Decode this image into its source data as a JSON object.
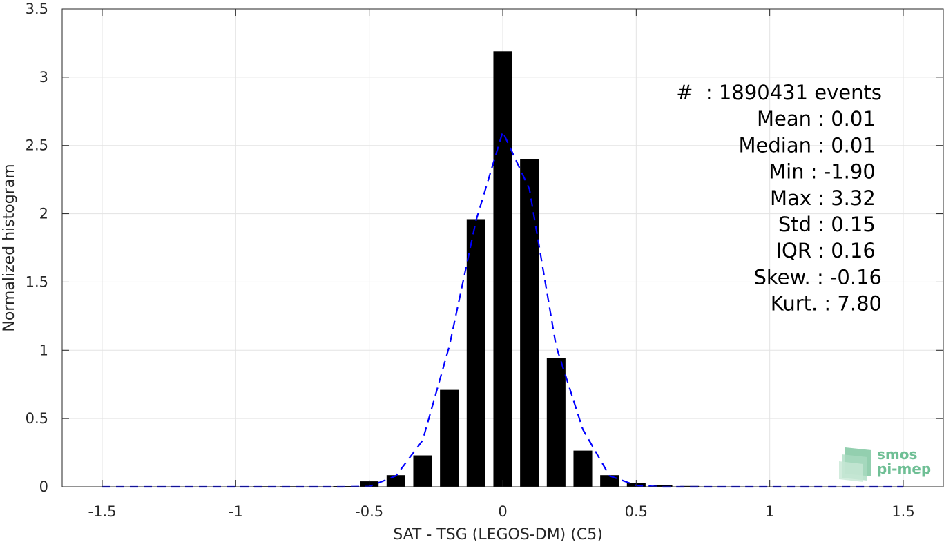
{
  "chart_data": {
    "type": "bar",
    "xlabel": "SAT - TSG (LEGOS-DM) (C5)",
    "ylabel": "Normalized histogram",
    "xlim": [
      -1.65,
      1.65
    ],
    "ylim": [
      0,
      3.5
    ],
    "xticks": [
      -1.5,
      -1,
      -0.5,
      0,
      0.5,
      1,
      1.5
    ],
    "xtick_labels": [
      "-1.5",
      "-1",
      "-0.5",
      "0",
      "0.5",
      "1",
      "1.5"
    ],
    "yticks": [
      0,
      0.5,
      1,
      1.5,
      2,
      2.5,
      3,
      3.5
    ],
    "ytick_labels": [
      "0",
      "0.5",
      "1",
      "1.5",
      "2",
      "2.5",
      "3",
      "3.5"
    ],
    "grid": true,
    "bar_color": "#000000",
    "bars": {
      "x": [
        -1.5,
        -1.4,
        -1.3,
        -1.2,
        -1.1,
        -1.0,
        -0.9,
        -0.8,
        -0.7,
        -0.6,
        -0.5,
        -0.4,
        -0.3,
        -0.2,
        -0.1,
        0.0,
        0.1,
        0.2,
        0.3,
        0.4,
        0.5,
        0.6,
        0.7,
        0.8,
        0.9,
        1.0,
        1.1,
        1.2,
        1.3,
        1.4,
        1.5
      ],
      "values": [
        0.0,
        0.0,
        0.0,
        0.0,
        0.0,
        0.002,
        0.004,
        0.004,
        0.003,
        0.005,
        0.04,
        0.085,
        0.23,
        0.71,
        1.96,
        3.19,
        2.4,
        0.945,
        0.265,
        0.085,
        0.03,
        0.012,
        0.006,
        0.003,
        0.002,
        0.001,
        0.0,
        0.0,
        0.0,
        0.0,
        0.0
      ]
    },
    "series": [
      {
        "style": "dashed",
        "color": "#0000ff",
        "x": [
          -1.5,
          -1.4,
          -1.3,
          -1.2,
          -1.1,
          -1.0,
          -0.9,
          -0.8,
          -0.7,
          -0.6,
          -0.5,
          -0.4,
          -0.3,
          -0.2,
          -0.1,
          0.0,
          0.1,
          0.2,
          0.3,
          0.4,
          0.5,
          0.6,
          0.7,
          0.8,
          0.9,
          1.0,
          1.1,
          1.2,
          1.3,
          1.4,
          1.5
        ],
        "values": [
          0.0,
          0.0,
          0.0,
          0.0,
          0.0,
          0.0,
          0.0,
          0.0,
          0.0,
          0.0,
          0.002,
          0.08,
          0.34,
          1.03,
          1.95,
          2.6,
          2.18,
          1.03,
          0.42,
          0.08,
          0.01,
          0.0,
          0.0,
          0.0,
          0.0,
          0.0,
          0.0,
          0.0,
          0.0,
          0.0,
          0.0
        ]
      }
    ],
    "annotations": [
      "#  : 1890431 events",
      "Mean : 0.01 ",
      "Median : 0.01 ",
      "Min : -1.90 ",
      "Max : 3.32 ",
      "Std : 0.15 ",
      "IQR : 0.16 ",
      "Skew. : -0.16",
      "Kurt. : 7.80"
    ]
  },
  "logo": {
    "line1": "smos",
    "line2": "pi-mep"
  }
}
